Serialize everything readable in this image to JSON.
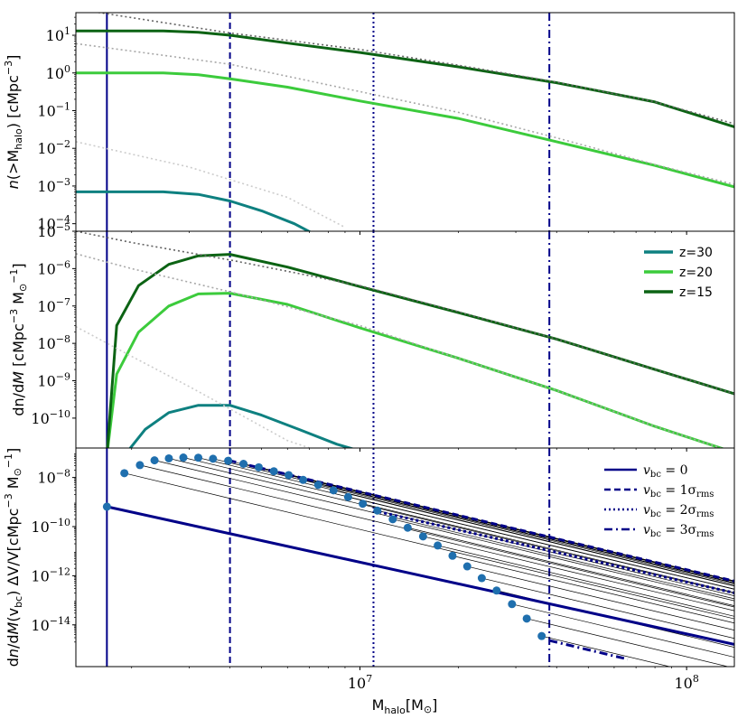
{
  "figure": {
    "xlabel": "M",
    "xlabel_sub": "halo",
    "xlabel_unit": "[M",
    "xlabel_unit_sym": "⊙",
    "xlabel_unit_close": "]",
    "x_ticks": [
      {
        "base": "10",
        "exp": "7",
        "value": 10000000.0
      },
      {
        "base": "10",
        "exp": "8",
        "value": 100000000.0
      }
    ],
    "xlim": [
      1350000.0,
      140000000.0
    ]
  },
  "colors": {
    "z30": "#0e8080",
    "z20": "#3ccb3c",
    "z15": "#0c6314",
    "navy": "#000088",
    "dash": "#646464",
    "faint": "#a8a8a8",
    "faint2": "#cccccc"
  },
  "chart_data": [
    {
      "type": "line",
      "title": "",
      "ylabel": "n(>M_halo) [cMpc^-3]",
      "ylabel_parts": {
        "n": "n",
        "open": "(>M",
        "sub": "halo",
        "close": ") [cMpc",
        "exp": "−3",
        "end": "]"
      },
      "ylim_log10": [
        -4.2,
        1.6
      ],
      "y_ticks": [
        {
          "base": "10",
          "exp": "1",
          "value": 10.0
        },
        {
          "base": "10",
          "exp": "0",
          "value": 1.0
        },
        {
          "base": "10",
          "exp": "−1",
          "value": 0.1
        },
        {
          "base": "10",
          "exp": "−2",
          "value": 0.01
        },
        {
          "base": "10",
          "exp": "−3",
          "value": 0.001
        },
        {
          "base": "10",
          "exp": "−4",
          "value": 0.0001
        }
      ],
      "series": [
        {
          "name": "z=30",
          "color": "z30",
          "x": [
            1350000.0,
            2500000.0,
            3200000.0,
            4000000.0,
            5000000.0,
            6300000.0,
            7500000.0
          ],
          "y": [
            0.0007,
            0.0007,
            0.0006,
            0.0004,
            0.00022,
            0.0001,
            4.5e-05
          ]
        },
        {
          "name": "z=20",
          "color": "z20",
          "x": [
            1350000.0,
            2500000.0,
            3200000.0,
            4000000.0,
            6000000.0,
            10000000.0,
            20000000.0,
            40000000.0,
            80000000.0,
            140000000.0
          ],
          "y": [
            1.0,
            1.0,
            0.9,
            0.7,
            0.42,
            0.18,
            0.062,
            0.015,
            0.0035,
            0.00095
          ]
        },
        {
          "name": "z=15",
          "color": "z15",
          "x": [
            1350000.0,
            2500000.0,
            3200000.0,
            4000000.0,
            6000000.0,
            10000000.0,
            20000000.0,
            40000000.0,
            80000000.0,
            140000000.0
          ],
          "y": [
            13,
            13,
            12,
            10,
            6.2,
            3.5,
            1.45,
            0.55,
            0.17,
            0.037
          ]
        },
        {
          "name": "z=15 no v_bc",
          "color": "dash",
          "dash": "2,3",
          "x": [
            1350000.0,
            4000000.0,
            10000000.0,
            20000000.0,
            40000000.0,
            80000000.0,
            140000000.0
          ],
          "y": [
            50,
            11.5,
            4.2,
            1.6,
            0.57,
            0.17,
            0.045
          ]
        },
        {
          "name": "z=20 no v_bc",
          "color": "faint",
          "dash": "2,3",
          "x": [
            1350000.0,
            4000000.0,
            10000000.0,
            20000000.0,
            40000000.0,
            80000000.0,
            140000000.0
          ],
          "y": [
            6,
            1.7,
            0.32,
            0.09,
            0.019,
            0.0037,
            0.0011
          ]
        },
        {
          "name": "z=30 no v_bc",
          "color": "faint2",
          "dash": "2,3",
          "x": [
            1350000.0,
            3000000.0,
            6000000.0,
            9000000.0
          ],
          "y": [
            0.015,
            0.0032,
            0.0005,
            8e-05
          ]
        }
      ]
    },
    {
      "type": "line",
      "title": "",
      "ylabel": "dn/dM [cMpc^-3 M_sun^-1]",
      "ylabel_parts": {
        "a": "dn/d",
        "m": "M",
        "b": " [cMpc",
        "exp1": "−3",
        "c": " M",
        "sym": "⊙",
        "exp2": "−1",
        "end": "]"
      },
      "ylim_log10": [
        -10.8,
        -5.0
      ],
      "y_ticks": [
        {
          "base": "10",
          "exp": "−5",
          "value": 1e-05
        },
        {
          "base": "10",
          "exp": "−6",
          "value": 1e-06
        },
        {
          "base": "10",
          "exp": "−7",
          "value": 1e-07
        },
        {
          "base": "10",
          "exp": "−8",
          "value": 1e-08
        },
        {
          "base": "10",
          "exp": "−9",
          "value": 1e-09
        },
        {
          "base": "10",
          "exp": "−10",
          "value": 1e-10
        }
      ],
      "legend": [
        "z=30",
        "z=20",
        "z=15"
      ],
      "legend_position": "upper-right",
      "series": [
        {
          "name": "z=30",
          "color": "z30",
          "x": [
            1900000.0,
            2200000.0,
            2600000.0,
            3200000.0,
            4000000.0,
            5000000.0,
            6500000.0,
            8500000.0,
            9500000.0
          ],
          "y": [
            1e-11,
            5e-11,
            1.4e-10,
            2.2e-10,
            2.2e-10,
            1.2e-10,
            5e-11,
            2e-11,
            1.5e-11
          ]
        },
        {
          "name": "z=20",
          "color": "z20",
          "x": [
            1680000.0,
            1800000.0,
            2100000.0,
            2600000.0,
            3200000.0,
            4000000.0,
            6000000.0,
            10000000.0,
            20000000.0,
            40000000.0,
            80000000.0,
            140000000.0
          ],
          "y": [
            1e-11,
            1.5e-09,
            2e-08,
            1e-07,
            2.1e-07,
            2.2e-07,
            1.1e-07,
            2.6e-08,
            4e-09,
            5.5e-10,
            6e-11,
            1.2e-11
          ]
        },
        {
          "name": "z=15",
          "color": "z15",
          "x": [
            1680000.0,
            1800000.0,
            2100000.0,
            2600000.0,
            3200000.0,
            4000000.0,
            6000000.0,
            10000000.0,
            20000000.0,
            40000000.0,
            80000000.0,
            140000000.0
          ],
          "y": [
            1e-11,
            3e-08,
            3.5e-07,
            1.3e-06,
            2.2e-06,
            2.4e-06,
            1.1e-06,
            3.3e-07,
            6.7e-08,
            1.3e-08,
            2e-09,
            4.5e-10
          ]
        },
        {
          "name": "z=15 no v_bc",
          "color": "dash",
          "dash": "2,3",
          "x": [
            1350000.0,
            2000000.0,
            4000000.0,
            10000000.0,
            20000000.0,
            40000000.0,
            80000000.0,
            140000000.0
          ],
          "y": [
            1e-05,
            5e-06,
            1.7e-06,
            3.5e-07,
            7e-08,
            1.3e-08,
            2e-09,
            4.5e-10
          ]
        },
        {
          "name": "z=20 no v_bc",
          "color": "faint",
          "dash": "2,3",
          "x": [
            1350000.0,
            2000000.0,
            4000000.0,
            10000000.0,
            20000000.0,
            40000000.0,
            80000000.0,
            140000000.0
          ],
          "y": [
            2.5e-06,
            1e-06,
            2.4e-07,
            3e-08,
            4e-09,
            5.5e-10,
            6e-11,
            1.2e-11
          ]
        },
        {
          "name": "z=30 no v_bc",
          "color": "faint2",
          "dash": "2,3",
          "x": [
            1350000.0,
            2000000.0,
            3000000.0,
            4500000.0,
            6000000.0,
            7000000.0,
            9000000.0
          ],
          "y": [
            2.8e-08,
            4.5e-09,
            7e-10,
            1e-10,
            2.5e-11,
            1.6e-11,
            1.2e-11
          ]
        }
      ]
    },
    {
      "type": "line+scatter",
      "title": "",
      "ylabel": "dn/dM(v_bc) ΔV/V [cMpc^-3 M_sun^-1]",
      "ylabel_parts": {
        "a": "d",
        "n": "n",
        "b": "/d",
        "m": "M",
        "c": "(v",
        "sub": "bc",
        "d": ") ΔV/V[cMpc",
        "exp1": "−3",
        "e": " M",
        "sym": "⊙",
        "exp2": "−1",
        "end": "]"
      },
      "ylim_log10": [
        -15.7,
        -6.8
      ],
      "y_ticks": [
        {
          "base": "10",
          "exp": "−8",
          "value": 1e-08
        },
        {
          "base": "10",
          "exp": "−10",
          "value": 1e-10
        },
        {
          "base": "10",
          "exp": "−12",
          "value": 1e-12
        },
        {
          "base": "10",
          "exp": "−14",
          "value": 1e-14
        }
      ],
      "legend": [
        {
          "v": "v",
          "sub": "bc",
          "eq": " = 0",
          "style": "solid"
        },
        {
          "v": "v",
          "sub": "bc",
          "eq": " = 1σ",
          "sub2": "rms",
          "style": "dashed"
        },
        {
          "v": "v",
          "sub": "bc",
          "eq": " = 2σ",
          "sub2": "rms",
          "style": "dotted"
        },
        {
          "v": "v",
          "sub": "bc",
          "eq": " = 3σ",
          "sub2": "rms",
          "style": "dashdot"
        }
      ],
      "legend_position": "upper-right",
      "vlines": [
        {
          "x": 1680000.0,
          "style": "solid"
        },
        {
          "x": 4000000.0,
          "style": "dashed"
        },
        {
          "x": 11000000.0,
          "style": "dotted"
        },
        {
          "x": 38000000.0,
          "style": "dashdot"
        }
      ],
      "scatter": {
        "x": [
          1680000.0,
          1900000.0,
          2120000.0,
          2350000.0,
          2600000.0,
          2880000.0,
          3200000.0,
          3550000.0,
          3950000.0,
          4400000.0,
          4900000.0,
          5450000.0,
          6050000.0,
          6700000.0,
          7450000.0,
          8300000.0,
          9200000.0,
          10200000.0,
          11300000.0,
          12600000.0,
          14000000.0,
          15600000.0,
          17300000.0,
          19200000.0,
          21300000.0,
          23600000.0,
          26200000.0,
          29200000.0,
          32400000.0,
          36000000.0
        ],
        "y": [
          6.5e-10,
          1.5e-08,
          3.2e-08,
          5e-08,
          6e-08,
          6.5e-08,
          6.4e-08,
          5.8e-08,
          4.8e-08,
          3.6e-08,
          2.6e-08,
          1.8e-08,
          1.25e-08,
          8e-09,
          5e-09,
          3e-09,
          1.6e-09,
          8.5e-10,
          4.5e-10,
          2e-10,
          9e-11,
          4e-11,
          1.7e-11,
          6.5e-12,
          2.4e-12,
          8e-13,
          2.5e-13,
          7e-14,
          1.8e-14,
          3.5e-15
        ]
      },
      "series": [
        {
          "name": "v_bc=0",
          "style": "solid",
          "x": [
            1680000.0,
            140000000.0
          ],
          "y": [
            6.5e-10,
            1.6e-15
          ]
        },
        {
          "name": "v_bc=1sigma",
          "style": "dashed",
          "x": [
            4000000.0,
            140000000.0
          ],
          "y": [
            4.8e-08,
            6e-13
          ]
        },
        {
          "name": "v_bc=2sigma",
          "style": "dotted",
          "x": [
            11000000.0,
            140000000.0
          ],
          "y": [
            4.5e-10,
            2e-13
          ]
        },
        {
          "name": "v_bc=3sigma",
          "style": "dashdot",
          "x": [
            38000000.0,
            66000000.0
          ],
          "y": [
            2.3e-15,
            4e-16
          ]
        }
      ]
    }
  ]
}
